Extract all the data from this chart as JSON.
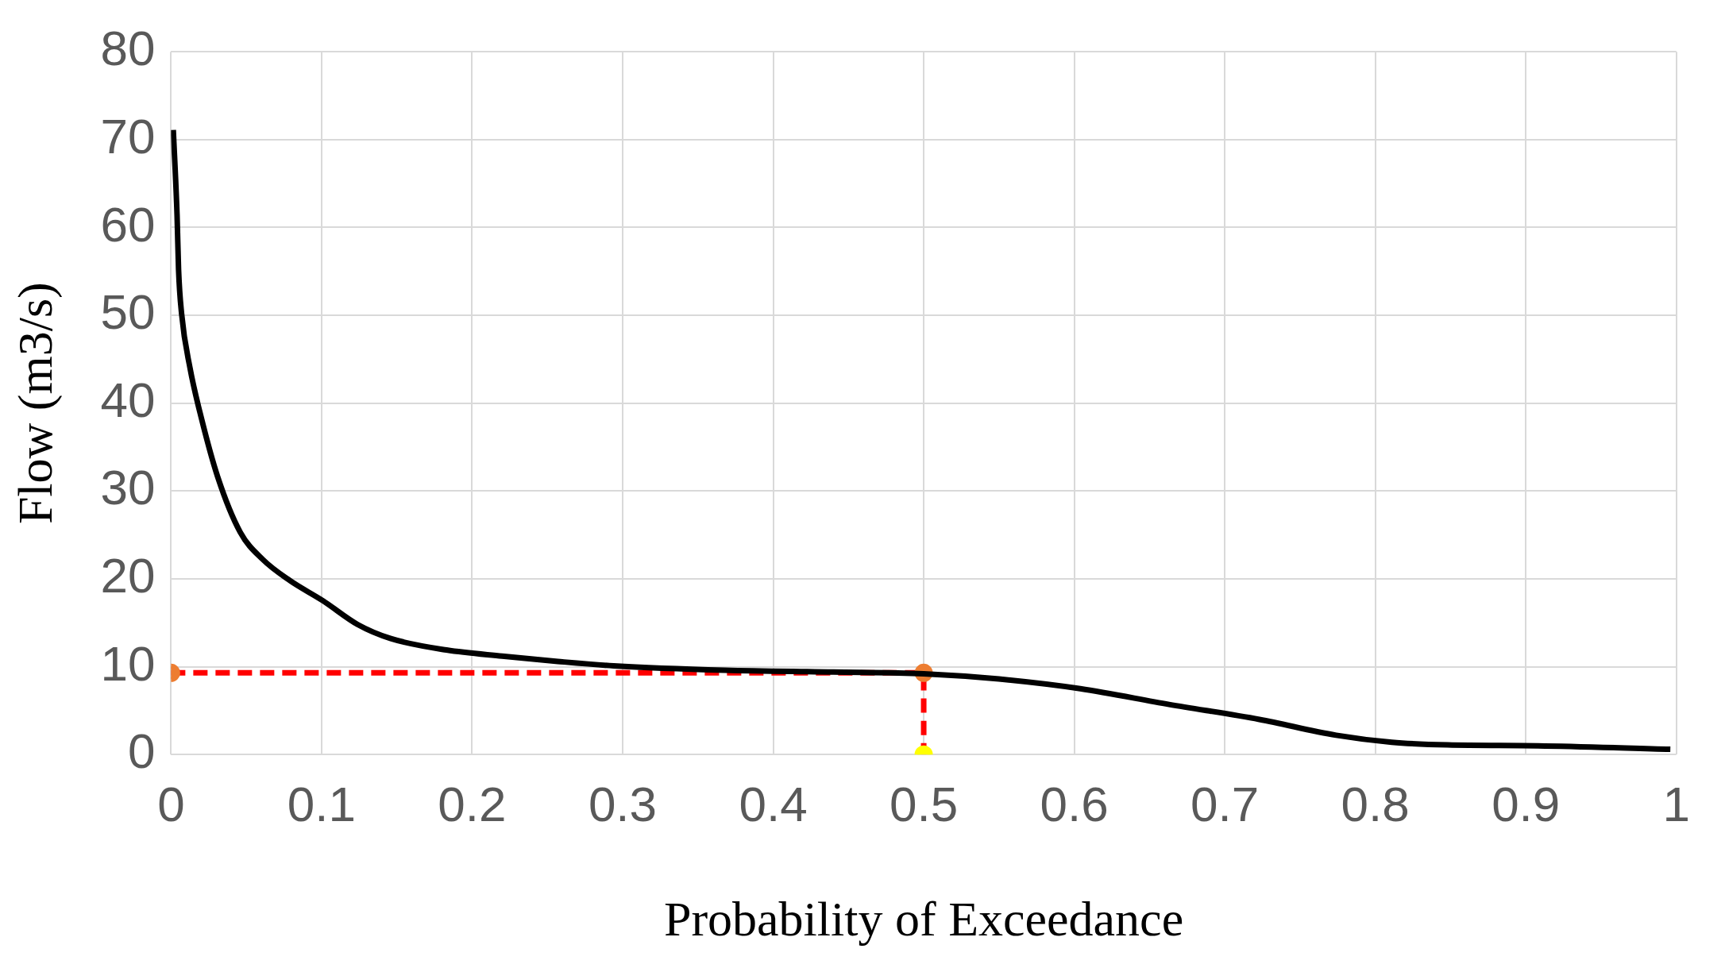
{
  "chart_data": {
    "type": "line",
    "xlabel": "Probability of Exceedance",
    "ylabel": "Flow (m3/s)",
    "xlim": [
      0,
      1
    ],
    "xticks": [
      0,
      0.1,
      0.2,
      0.3,
      0.4,
      0.5,
      0.6,
      0.7,
      0.8,
      0.9,
      1
    ],
    "ylim": [
      0,
      80
    ],
    "yticks": [
      0,
      10,
      20,
      30,
      40,
      50,
      60,
      70,
      80
    ],
    "grid": true,
    "legend": false,
    "series": [
      {
        "type": "line",
        "color": "#000000",
        "marker": "none",
        "line_style": "solid",
        "x": [
          0.0015,
          0.004,
          0.005,
          0.007,
          0.0126,
          0.02,
          0.031,
          0.046,
          0.061,
          0.079,
          0.101,
          0.124,
          0.146,
          0.183,
          0.22,
          0.257,
          0.294,
          0.368,
          0.44,
          0.5,
          0.55,
          0.604,
          0.663,
          0.723,
          0.774,
          0.811,
          0.848,
          0.908,
          0.996
        ],
        "values": [
          71.1,
          61.4,
          55.2,
          50.2,
          44,
          38.4,
          31.6,
          25.3,
          22.2,
          19.8,
          17.5,
          14.8,
          13.2,
          11.9,
          11.2,
          10.6,
          10.1,
          9.6,
          9.4,
          9.2,
          8.6,
          7.5,
          5.7,
          4.0,
          2.2,
          1.4,
          1.1,
          1.0,
          0.6
        ]
      },
      {
        "type": "line",
        "color": "#ff0000",
        "colors": [
          "#ed7d31",
          "#ed7d31",
          "#ffff00"
        ],
        "marker": "circle",
        "line_style": "dashed",
        "x": [
          0,
          0.5,
          0.5
        ],
        "values": [
          9.3,
          9.3,
          0
        ]
      }
    ]
  }
}
